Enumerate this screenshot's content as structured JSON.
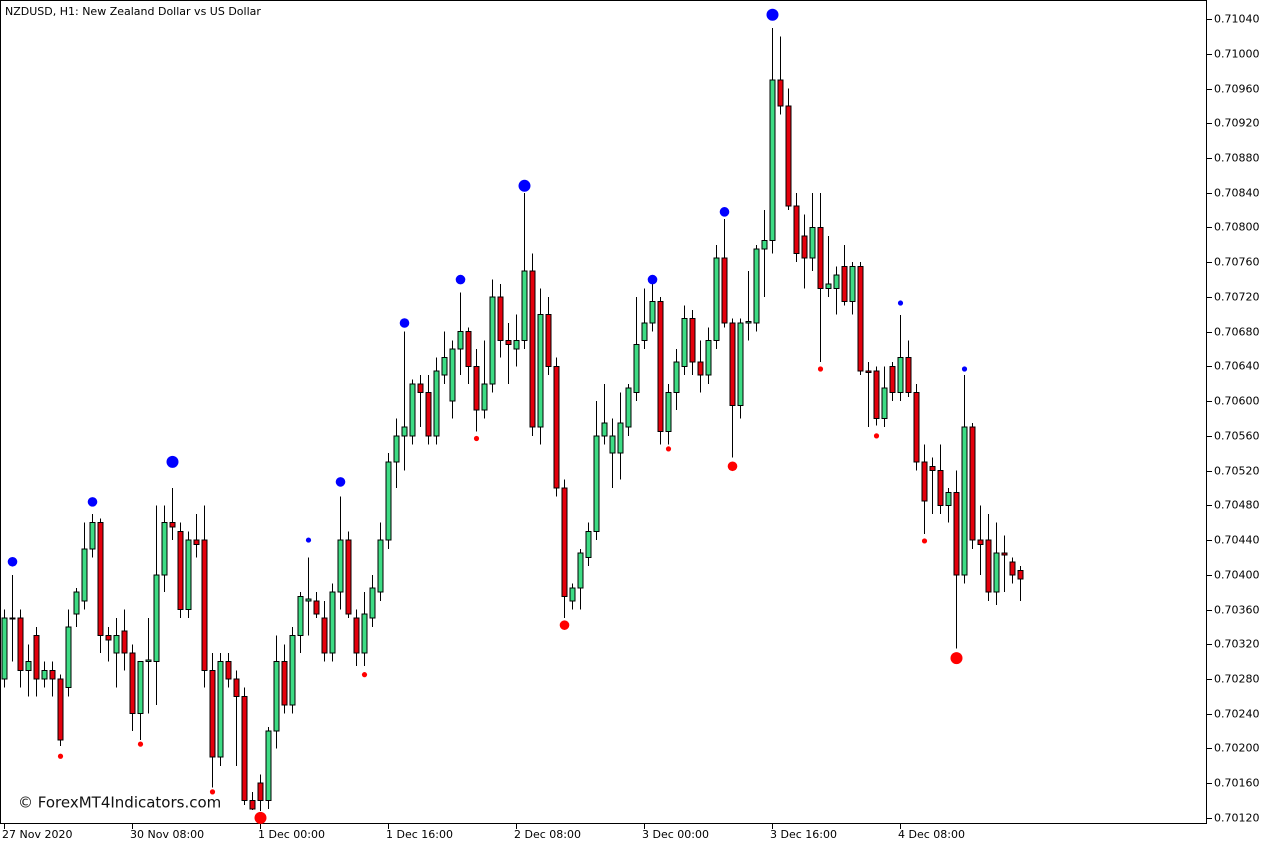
{
  "chart_data": {
    "type": "candlestick",
    "title": "NZDUSD, H1:  New Zealand Dollar vs US Dollar",
    "annotation": "© ForexMT4Indicators.com",
    "up_color": "#3ddc84",
    "down_color": "#e4000c",
    "categories": [
      "27 Nov 2020",
      null,
      null,
      null,
      null,
      null,
      null,
      null,
      null,
      null,
      null,
      null,
      null,
      null,
      null,
      null,
      "30 Nov 08:00",
      null,
      null,
      null,
      null,
      null,
      null,
      null,
      null,
      null,
      null,
      null,
      null,
      null,
      null,
      null,
      "1 Dec 00:00",
      null,
      null,
      null,
      null,
      null,
      null,
      null,
      null,
      null,
      null,
      null,
      null,
      null,
      null,
      null,
      "1 Dec 16:00",
      null,
      null,
      null,
      null,
      null,
      null,
      null,
      null,
      null,
      null,
      null,
      null,
      null,
      null,
      null,
      "2 Dec 08:00",
      null,
      null,
      null,
      null,
      null,
      null,
      null,
      null,
      null,
      null,
      null,
      null,
      null,
      null,
      null,
      "3 Dec 00:00",
      null,
      null,
      null,
      null,
      null,
      null,
      null,
      null,
      null,
      null,
      null,
      null,
      null,
      null,
      null,
      "3 Dec 16:00",
      null,
      null,
      null,
      null,
      null,
      null,
      null,
      null,
      null,
      null,
      null,
      null,
      null,
      null,
      null,
      "4 Dec 08:00",
      null,
      null,
      null,
      null,
      null,
      null,
      null,
      null,
      null,
      null,
      null,
      null,
      null,
      null,
      null
    ],
    "open": [
      0.7028,
      0.7035,
      0.7035,
      0.7029,
      0.7033,
      0.7028,
      0.7029,
      0.7028,
      0.7027,
      0.70355,
      0.7037,
      0.7043,
      0.7046,
      0.7033,
      0.7031,
      0.70335,
      0.7031,
      0.7024,
      0.703,
      0.703,
      0.704,
      0.7046,
      0.7045,
      0.7036,
      0.7044,
      0.7044,
      0.7029,
      0.7019,
      0.703,
      0.7028,
      0.7026,
      0.7014,
      0.7016,
      0.7014,
      0.7022,
      0.703,
      0.7025,
      0.7033,
      0.7037,
      0.7037,
      0.7035,
      0.7031,
      0.7038,
      0.7044,
      0.7035,
      0.7031,
      0.7035,
      0.7038,
      0.7044,
      0.7053,
      0.7056,
      0.7056,
      0.7062,
      0.7061,
      0.7056,
      0.7063,
      0.706,
      0.7066,
      0.7068,
      0.7064,
      0.7059,
      0.7062,
      0.7072,
      0.7067,
      0.7066,
      0.7067,
      0.7075,
      0.7057,
      0.707,
      0.7064,
      0.705,
      0.7037,
      0.70385,
      0.7042,
      0.7045,
      0.7056,
      0.7054,
      0.7054,
      0.7057,
      0.7061,
      0.7067,
      0.7069,
      0.70715,
      0.70565,
      0.7061,
      0.7064,
      0.70695,
      0.70645,
      0.7063,
      0.7067,
      0.70765,
      0.7069,
      0.70595,
      0.7069,
      0.7069,
      0.70775,
      0.70785,
      0.7097,
      0.7094,
      0.70825,
      0.7079,
      0.70765,
      0.708,
      0.7073,
      0.7073,
      0.70755,
      0.70715,
      0.70755,
      0.70635,
      0.70635,
      0.7058,
      0.7064,
      0.7061,
      0.7065,
      0.7061,
      0.7053,
      0.70525,
      0.7052,
      0.7048,
      0.70495,
      0.704,
      0.7057,
      0.7044,
      0.7044,
      0.7038,
      0.70425,
      0.70415,
      0.70405
    ],
    "high": [
      0.7036,
      0.704,
      0.7036,
      0.7032,
      0.7034,
      0.703,
      0.703,
      0.70285,
      0.7036,
      0.70385,
      0.7046,
      0.7047,
      0.70465,
      0.7034,
      0.7035,
      0.7036,
      0.7032,
      0.703,
      0.7035,
      0.7048,
      0.7048,
      0.705,
      0.7046,
      0.7045,
      0.7047,
      0.7048,
      0.7031,
      0.7031,
      0.7031,
      0.7029,
      0.7027,
      0.7015,
      0.7017,
      0.70225,
      0.7033,
      0.7032,
      0.7034,
      0.7038,
      0.7042,
      0.7038,
      0.7037,
      0.7039,
      0.7049,
      0.7045,
      0.7036,
      0.7038,
      0.704,
      0.7046,
      0.7054,
      0.7058,
      0.7068,
      0.70625,
      0.7063,
      0.7063,
      0.7065,
      0.7068,
      0.7067,
      0.70725,
      0.70685,
      0.7066,
      0.7067,
      0.7074,
      0.70735,
      0.7069,
      0.707,
      0.7084,
      0.7077,
      0.7073,
      0.7072,
      0.7065,
      0.7051,
      0.7039,
      0.7043,
      0.7046,
      0.706,
      0.7062,
      0.7058,
      0.7061,
      0.7062,
      0.7072,
      0.7073,
      0.70735,
      0.7072,
      0.7062,
      0.7066,
      0.7071,
      0.70705,
      0.7067,
      0.70685,
      0.7078,
      0.7081,
      0.70695,
      0.70695,
      0.7075,
      0.7078,
      0.7082,
      0.7103,
      0.7102,
      0.7096,
      0.7084,
      0.70815,
      0.7084,
      0.7084,
      0.7079,
      0.70755,
      0.7078,
      0.7076,
      0.7076,
      0.70645,
      0.7064,
      0.7064,
      0.70645,
      0.70699,
      0.7067,
      0.7062,
      0.7055,
      0.70535,
      0.7055,
      0.705,
      0.7052,
      0.7063,
      0.70575,
      0.7048,
      0.7047,
      0.7046,
      0.70445,
      0.7042,
      0.7041
    ],
    "low": [
      0.7027,
      0.703,
      0.7027,
      0.7026,
      0.7026,
      0.7027,
      0.7026,
      0.70203,
      0.7026,
      0.7034,
      0.7036,
      0.7042,
      0.7031,
      0.703,
      0.7027,
      0.7029,
      0.7022,
      0.7021,
      0.7024,
      0.7025,
      0.7038,
      0.7044,
      0.7035,
      0.7035,
      0.7042,
      0.7027,
      0.70155,
      0.7018,
      0.7027,
      0.7018,
      0.70135,
      0.70129,
      0.70128,
      0.7013,
      0.702,
      0.7024,
      0.7024,
      0.7031,
      0.7033,
      0.7035,
      0.703,
      0.703,
      0.7036,
      0.7035,
      0.70295,
      0.70295,
      0.7034,
      0.7037,
      0.7043,
      0.705,
      0.7052,
      0.7055,
      0.7057,
      0.7055,
      0.7055,
      0.7062,
      0.7058,
      0.7063,
      0.7062,
      0.70565,
      0.7058,
      0.7061,
      0.7065,
      0.7062,
      0.7064,
      0.7066,
      0.7056,
      0.7055,
      0.7063,
      0.7049,
      0.7035,
      0.7036,
      0.7036,
      0.7041,
      0.7044,
      0.7055,
      0.705,
      0.7051,
      0.7056,
      0.706,
      0.7066,
      0.7068,
      0.7055,
      0.7055,
      0.7059,
      0.7063,
      0.7063,
      0.7061,
      0.7062,
      0.7066,
      0.70685,
      0.70535,
      0.7058,
      0.7067,
      0.7068,
      0.7072,
      0.7077,
      0.7093,
      0.7082,
      0.7076,
      0.7073,
      0.7075,
      0.70645,
      0.7072,
      0.707,
      0.7071,
      0.707,
      0.7063,
      0.7057,
      0.70572,
      0.7057,
      0.706,
      0.706,
      0.70605,
      0.7052,
      0.70447,
      0.7047,
      0.7047,
      0.7046,
      0.70315,
      0.7039,
      0.7043,
      0.704,
      0.7037,
      0.70365,
      0.7038,
      0.7039,
      0.7037
    ],
    "close": [
      0.7035,
      0.7035,
      0.7029,
      0.703,
      0.7028,
      0.7029,
      0.7028,
      0.7021,
      0.7034,
      0.7038,
      0.7043,
      0.7046,
      0.7033,
      0.70325,
      0.7033,
      0.7031,
      0.7024,
      0.703,
      0.70302,
      0.704,
      0.7046,
      0.70455,
      0.7036,
      0.7044,
      0.70435,
      0.7029,
      0.7019,
      0.703,
      0.7028,
      0.7026,
      0.7014,
      0.7013,
      0.7014,
      0.7022,
      0.703,
      0.7025,
      0.7033,
      0.70375,
      0.70372,
      0.70355,
      0.7031,
      0.7038,
      0.7044,
      0.70355,
      0.7031,
      0.70355,
      0.70385,
      0.7044,
      0.7053,
      0.7056,
      0.7057,
      0.7062,
      0.7061,
      0.7056,
      0.70635,
      0.7065,
      0.7066,
      0.7068,
      0.7064,
      0.7059,
      0.7062,
      0.7072,
      0.7067,
      0.70665,
      0.7067,
      0.7075,
      0.7057,
      0.707,
      0.7064,
      0.705,
      0.70375,
      0.70385,
      0.70425,
      0.7045,
      0.7056,
      0.70575,
      0.7056,
      0.70575,
      0.70615,
      0.70665,
      0.7069,
      0.70715,
      0.70565,
      0.7061,
      0.70645,
      0.70695,
      0.70645,
      0.7063,
      0.7067,
      0.70765,
      0.7069,
      0.70595,
      0.7069,
      0.70692,
      0.70775,
      0.70785,
      0.7097,
      0.7094,
      0.70825,
      0.7077,
      0.70765,
      0.708,
      0.7073,
      0.70735,
      0.70745,
      0.70715,
      0.70755,
      0.70635,
      0.70633,
      0.7058,
      0.70615,
      0.7061,
      0.7065,
      0.7061,
      0.7053,
      0.70485,
      0.7052,
      0.7048,
      0.70495,
      0.704,
      0.7057,
      0.7044,
      0.70435,
      0.7038,
      0.70425,
      0.70423,
      0.704,
      0.70395
    ],
    "fractals": [
      {
        "index": 1,
        "value": 0.70415,
        "color": "#0000ff",
        "size": "medium"
      },
      {
        "index": 7,
        "value": 0.70191,
        "color": "#ff0000",
        "size": "small"
      },
      {
        "index": 11,
        "value": 0.70484,
        "color": "#0000ff",
        "size": "medium"
      },
      {
        "index": 17,
        "value": 0.70205,
        "color": "#ff0000",
        "size": "small"
      },
      {
        "index": 21,
        "value": 0.7053,
        "color": "#0000ff",
        "size": "large"
      },
      {
        "index": 26,
        "value": 0.7015,
        "color": "#ff0000",
        "size": "small"
      },
      {
        "index": 32,
        "value": 0.7012,
        "color": "#ff0000",
        "size": "large"
      },
      {
        "index": 38,
        "value": 0.7044,
        "color": "#0000ff",
        "size": "small"
      },
      {
        "index": 42,
        "value": 0.70507,
        "color": "#0000ff",
        "size": "medium"
      },
      {
        "index": 45,
        "value": 0.70285,
        "color": "#ff0000",
        "size": "small"
      },
      {
        "index": 50,
        "value": 0.7069,
        "color": "#0000ff",
        "size": "medium"
      },
      {
        "index": 57,
        "value": 0.7074,
        "color": "#0000ff",
        "size": "medium"
      },
      {
        "index": 59,
        "value": 0.70557,
        "color": "#ff0000",
        "size": "small"
      },
      {
        "index": 65,
        "value": 0.70848,
        "color": "#0000ff",
        "size": "large"
      },
      {
        "index": 70,
        "value": 0.70342,
        "color": "#ff0000",
        "size": "medium"
      },
      {
        "index": 81,
        "value": 0.7074,
        "color": "#0000ff",
        "size": "medium"
      },
      {
        "index": 83,
        "value": 0.70545,
        "color": "#ff0000",
        "size": "small"
      },
      {
        "index": 90,
        "value": 0.70818,
        "color": "#0000ff",
        "size": "medium"
      },
      {
        "index": 91,
        "value": 0.70525,
        "color": "#ff0000",
        "size": "medium"
      },
      {
        "index": 96,
        "value": 0.71045,
        "color": "#0000ff",
        "size": "large"
      },
      {
        "index": 102,
        "value": 0.70637,
        "color": "#ff0000",
        "size": "small"
      },
      {
        "index": 109,
        "value": 0.7056,
        "color": "#ff0000",
        "size": "small"
      },
      {
        "index": 112,
        "value": 0.70713,
        "color": "#0000ff",
        "size": "small"
      },
      {
        "index": 115,
        "value": 0.70439,
        "color": "#ff0000",
        "size": "small"
      },
      {
        "index": 119,
        "value": 0.70304,
        "color": "#ff0000",
        "size": "large"
      },
      {
        "index": 120,
        "value": 0.70637,
        "color": "#0000ff",
        "size": "small"
      }
    ],
    "ylim": [
      0.70113,
      0.71062
    ],
    "yticks": [
      {
        "value": 0.7012,
        "label": "0.70120"
      },
      {
        "value": 0.7016,
        "label": "0.70160"
      },
      {
        "value": 0.702,
        "label": "0.70200"
      },
      {
        "value": 0.7024,
        "label": "0.70240"
      },
      {
        "value": 0.7028,
        "label": "0.70280"
      },
      {
        "value": 0.7032,
        "label": "0.70320"
      },
      {
        "value": 0.7036,
        "label": "0.70360"
      },
      {
        "value": 0.704,
        "label": "0.70400"
      },
      {
        "value": 0.7044,
        "label": "0.70440"
      },
      {
        "value": 0.7048,
        "label": "0.70480"
      },
      {
        "value": 0.7052,
        "label": "0.70520"
      },
      {
        "value": 0.7056,
        "label": "0.70560"
      },
      {
        "value": 0.706,
        "label": "0.70600"
      },
      {
        "value": 0.7064,
        "label": "0.70640"
      },
      {
        "value": 0.7068,
        "label": "0.70680"
      },
      {
        "value": 0.7072,
        "label": "0.70720"
      },
      {
        "value": 0.7076,
        "label": "0.70760"
      },
      {
        "value": 0.708,
        "label": "0.70800"
      },
      {
        "value": 0.7084,
        "label": "0.70840"
      },
      {
        "value": 0.7088,
        "label": "0.70880"
      },
      {
        "value": 0.7092,
        "label": "0.70920"
      },
      {
        "value": 0.7096,
        "label": "0.70960"
      },
      {
        "value": 0.71,
        "label": "0.71000"
      },
      {
        "value": 0.7104,
        "label": "0.71040"
      }
    ],
    "grid": false
  }
}
